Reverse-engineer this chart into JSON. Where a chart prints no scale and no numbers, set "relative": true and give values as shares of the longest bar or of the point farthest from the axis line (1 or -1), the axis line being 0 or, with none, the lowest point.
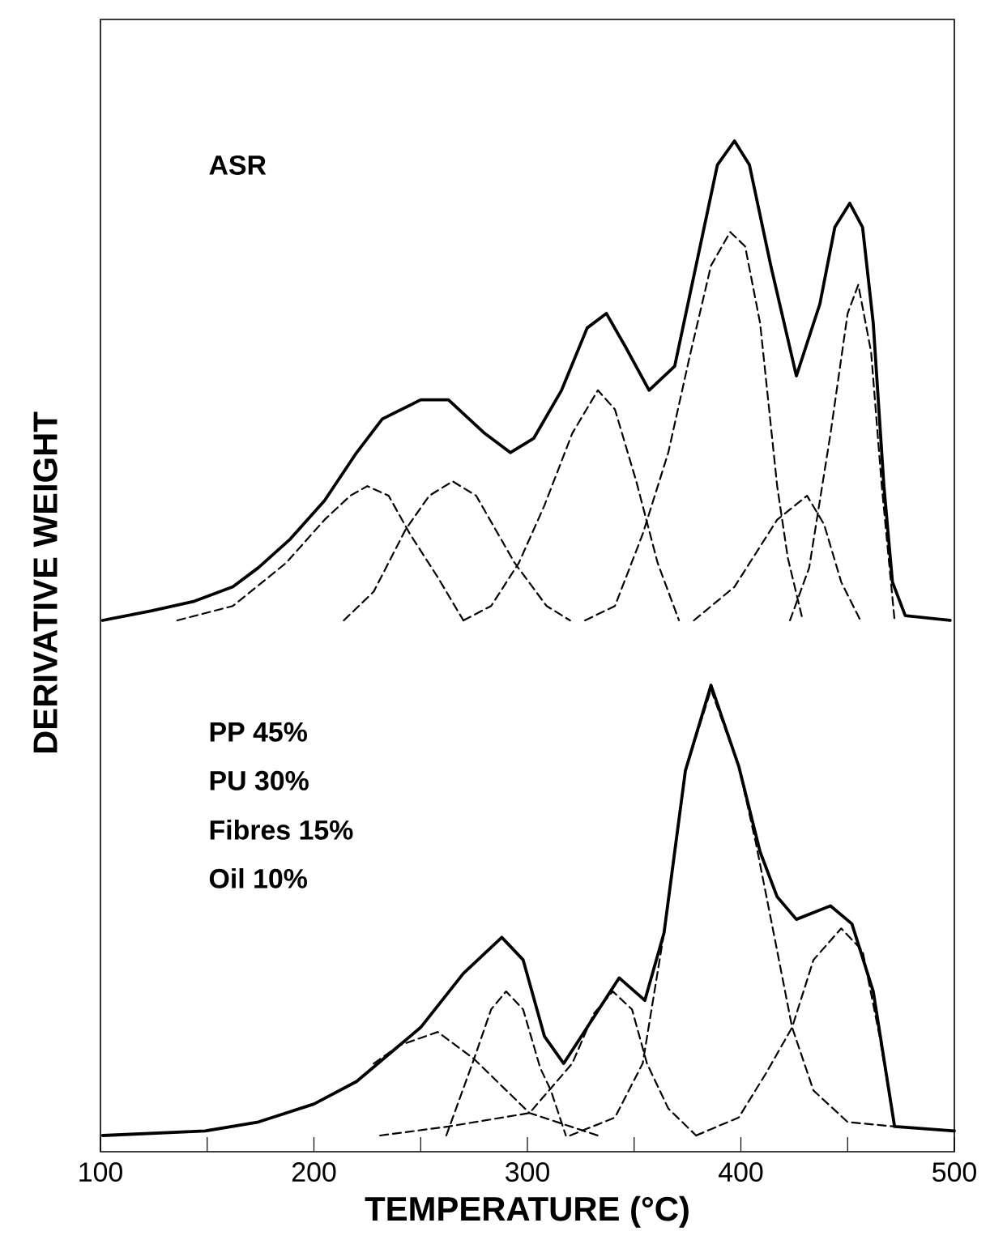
{
  "chart_data": [
    {
      "type": "line",
      "relative": true,
      "ylabel": "DERIVATIVE WEIGHT",
      "annotations": [
        "ASR"
      ],
      "xlim": [
        100,
        500
      ],
      "tick_labels": false,
      "series": [
        {
          "color": "#000000",
          "line_style": "solid",
          "x": [
            101,
            124,
            144,
            162,
            174,
            189,
            205,
            220,
            232,
            250,
            263,
            280,
            292,
            303,
            316,
            328,
            337,
            346,
            357,
            369,
            379,
            389,
            397,
            404,
            414,
            426,
            437,
            444,
            451,
            457,
            462,
            467,
            471,
            477,
            498
          ],
          "values": [
            0,
            0.02,
            0.04,
            0.07,
            0.11,
            0.17,
            0.25,
            0.35,
            0.42,
            0.46,
            0.46,
            0.39,
            0.35,
            0.38,
            0.48,
            0.61,
            0.64,
            0.57,
            0.48,
            0.53,
            0.74,
            0.95,
            1,
            0.95,
            0.74,
            0.51,
            0.66,
            0.82,
            0.87,
            0.82,
            0.62,
            0.28,
            0.08,
            0.01,
            0
          ]
        },
        {
          "color": "#000000",
          "line_style": "dashed",
          "x": [
            136,
            162,
            187,
            205,
            217,
            225,
            235,
            245,
            258,
            270
          ],
          "values": [
            0,
            0.03,
            0.12,
            0.21,
            0.26,
            0.28,
            0.26,
            0.18,
            0.09,
            0
          ]
        },
        {
          "color": "#000000",
          "line_style": "dashed",
          "x": [
            214,
            228,
            243,
            254,
            265,
            276,
            294,
            309,
            320
          ],
          "values": [
            0,
            0.06,
            0.19,
            0.26,
            0.29,
            0.26,
            0.12,
            0.03,
            0
          ]
        },
        {
          "color": "#000000",
          "line_style": "dashed",
          "x": [
            270,
            283,
            296,
            308,
            321,
            333,
            341,
            351,
            361,
            371
          ],
          "values": [
            0,
            0.03,
            0.12,
            0.24,
            0.39,
            0.48,
            0.44,
            0.29,
            0.12,
            0
          ]
        },
        {
          "color": "#000000",
          "line_style": "dashed",
          "x": [
            327,
            341,
            354,
            366,
            376,
            386,
            395,
            402,
            409,
            417,
            422,
            429
          ],
          "values": [
            0,
            0.03,
            0.18,
            0.35,
            0.55,
            0.74,
            0.81,
            0.78,
            0.62,
            0.28,
            0.13,
            0
          ]
        },
        {
          "color": "#000000",
          "line_style": "dashed",
          "x": [
            378,
            397,
            417,
            431,
            439,
            447,
            456
          ],
          "values": [
            0,
            0.07,
            0.21,
            0.26,
            0.2,
            0.08,
            0
          ]
        },
        {
          "color": "#000000",
          "line_style": "dashed",
          "x": [
            423,
            432,
            442,
            450,
            455,
            461,
            466,
            472
          ],
          "values": [
            0,
            0.11,
            0.39,
            0.64,
            0.7,
            0.56,
            0.28,
            0
          ]
        }
      ]
    },
    {
      "type": "line",
      "relative": true,
      "xlabel": "TEMPERATURE (°C)",
      "annotations": [
        "PP      45%",
        "PU      30%",
        "Fibres 15%",
        "Oil      10%"
      ],
      "xlim": [
        100,
        500
      ],
      "xticks": [
        100,
        {
          "value": 150,
          "label": null
        },
        200,
        {
          "value": 250,
          "label": null
        },
        300,
        {
          "value": 350,
          "label": null
        },
        400,
        {
          "value": 450,
          "label": null
        },
        500
      ],
      "tick_labels": "x",
      "series": [
        {
          "color": "#000000",
          "line_style": "solid",
          "x": [
            101,
            149,
            174,
            200,
            220,
            240,
            250,
            270,
            288,
            298,
            308,
            317,
            328,
            343,
            355,
            364,
            374,
            386,
            399,
            409,
            417,
            426,
            442,
            452,
            462,
            472,
            500
          ],
          "values": [
            0,
            0.01,
            0.03,
            0.07,
            0.12,
            0.2,
            0.24,
            0.36,
            0.44,
            0.39,
            0.22,
            0.16,
            0.24,
            0.35,
            0.3,
            0.45,
            0.81,
            1,
            0.82,
            0.63,
            0.53,
            0.48,
            0.51,
            0.47,
            0.32,
            0.02,
            0.01
          ]
        },
        {
          "color": "#000000",
          "line_style": "dashed",
          "x": [
            228,
            240,
            258,
            275,
            301,
            333
          ],
          "values": [
            0.16,
            0.2,
            0.23,
            0.17,
            0.05,
            0
          ]
        },
        {
          "color": "#000000",
          "line_style": "dashed",
          "x": [
            262,
            275,
            283,
            290,
            298,
            306,
            311,
            318
          ],
          "values": [
            0,
            0.17,
            0.28,
            0.32,
            0.28,
            0.15,
            0.1,
            0
          ]
        },
        {
          "color": "#000000",
          "line_style": "dashed",
          "x": [
            231,
            263,
            301,
            321,
            331,
            340,
            349,
            356,
            366,
            379
          ],
          "values": [
            0,
            0.02,
            0.05,
            0.16,
            0.27,
            0.32,
            0.28,
            0.16,
            0.06,
            0
          ]
        },
        {
          "color": "#000000",
          "line_style": "dashed",
          "x": [
            320,
            341,
            354,
            364,
            374,
            386,
            399,
            407,
            417,
            424,
            434,
            450,
            472
          ],
          "values": [
            0,
            0.04,
            0.16,
            0.45,
            0.81,
            0.99,
            0.82,
            0.65,
            0.41,
            0.24,
            0.1,
            0.03,
            0.02
          ]
        },
        {
          "color": "#000000",
          "line_style": "dashed",
          "x": [
            379,
            399,
            412,
            424,
            434,
            447,
            457,
            465,
            472
          ],
          "values": [
            0,
            0.04,
            0.14,
            0.24,
            0.39,
            0.46,
            0.41,
            0.22,
            0.02
          ]
        }
      ]
    }
  ]
}
